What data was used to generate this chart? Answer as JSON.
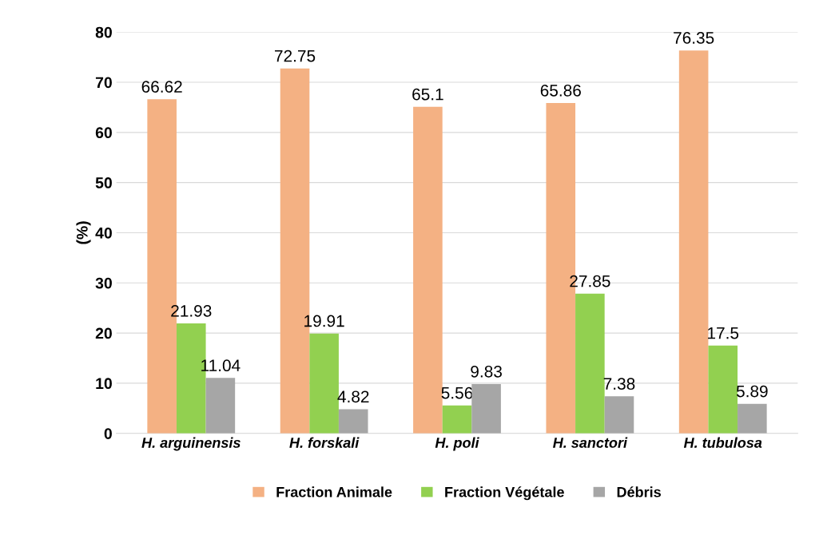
{
  "chart_data": {
    "type": "bar",
    "ylabel": "(%)",
    "categories": [
      "H. arguinensis",
      "H. forskali",
      "H. poli",
      "H. sanctori",
      "H. tubulosa"
    ],
    "series": [
      {
        "name": "Fraction Animale",
        "color": "#f4b183",
        "values": [
          66.62,
          72.75,
          65.1,
          65.86,
          76.35
        ]
      },
      {
        "name": "Fraction Végétale",
        "color": "#92d050",
        "values": [
          21.93,
          19.91,
          5.56,
          27.85,
          17.5
        ]
      },
      {
        "name": "Débris",
        "color": "#a6a6a6",
        "values": [
          11.04,
          4.82,
          9.83,
          7.38,
          5.89
        ]
      }
    ],
    "ylim": [
      0,
      80
    ],
    "yticks": [
      0,
      10,
      20,
      30,
      40,
      50,
      60,
      70,
      80
    ],
    "grid": "y",
    "legend": "bottom",
    "data_labels": true
  }
}
